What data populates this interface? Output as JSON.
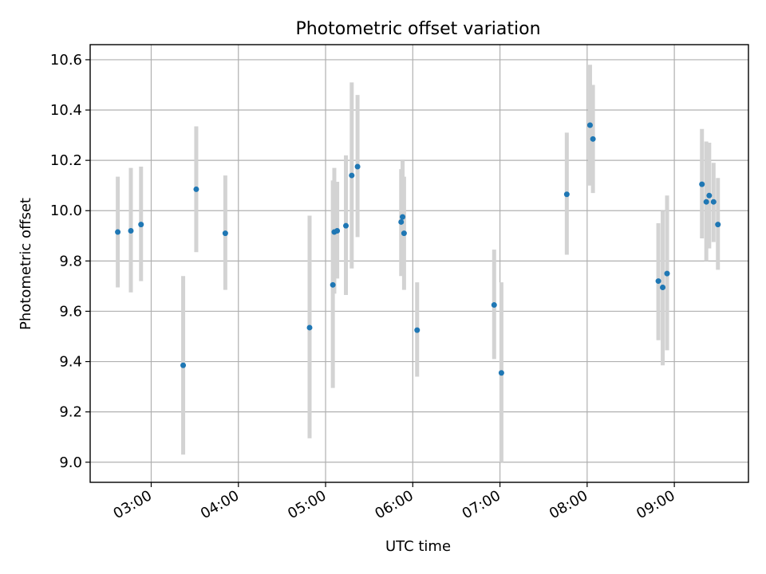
{
  "chart_data": {
    "type": "scatter",
    "title": "Photometric offset variation",
    "xlabel": "UTC time",
    "ylabel": "Photometric offset",
    "x_ticks": [
      "03:00",
      "04:00",
      "05:00",
      "06:00",
      "07:00",
      "08:00",
      "09:00"
    ],
    "y_ticks": [
      "9.0",
      "9.2",
      "9.4",
      "9.6",
      "9.8",
      "10.0",
      "10.2",
      "10.4",
      "10.6"
    ],
    "xlim": [
      "02:18",
      "09:51"
    ],
    "ylim": [
      8.92,
      10.66
    ],
    "grid": true,
    "colors": {
      "point": "#1f77b4",
      "errorbar": "#d3d3d3"
    },
    "points": [
      {
        "x": "02:37",
        "y": 9.915,
        "lo": 9.695,
        "hi": 10.135
      },
      {
        "x": "02:46",
        "y": 9.92,
        "lo": 9.675,
        "hi": 10.17
      },
      {
        "x": "02:53",
        "y": 9.945,
        "lo": 9.72,
        "hi": 10.175
      },
      {
        "x": "03:22",
        "y": 9.385,
        "lo": 9.03,
        "hi": 9.74
      },
      {
        "x": "03:31",
        "y": 10.085,
        "lo": 9.835,
        "hi": 10.335
      },
      {
        "x": "03:51",
        "y": 9.91,
        "lo": 9.685,
        "hi": 10.14
      },
      {
        "x": "04:49",
        "y": 9.535,
        "lo": 9.095,
        "hi": 9.98
      },
      {
        "x": "05:05",
        "y": 9.705,
        "lo": 9.295,
        "hi": 10.12
      },
      {
        "x": "05:06",
        "y": 9.915,
        "lo": 9.67,
        "hi": 10.17
      },
      {
        "x": "05:08",
        "y": 9.92,
        "lo": 9.73,
        "hi": 10.115
      },
      {
        "x": "05:14",
        "y": 9.94,
        "lo": 9.665,
        "hi": 10.22
      },
      {
        "x": "05:18",
        "y": 10.14,
        "lo": 9.77,
        "hi": 10.51
      },
      {
        "x": "05:22",
        "y": 10.175,
        "lo": 9.895,
        "hi": 10.46
      },
      {
        "x": "05:52",
        "y": 9.955,
        "lo": 9.74,
        "hi": 10.165
      },
      {
        "x": "05:53",
        "y": 9.975,
        "lo": 9.755,
        "hi": 10.2
      },
      {
        "x": "05:54",
        "y": 9.91,
        "lo": 9.685,
        "hi": 10.135
      },
      {
        "x": "06:03",
        "y": 9.525,
        "lo": 9.34,
        "hi": 9.715
      },
      {
        "x": "06:56",
        "y": 9.625,
        "lo": 9.41,
        "hi": 9.845
      },
      {
        "x": "07:01",
        "y": 9.355,
        "lo": 9.0,
        "hi": 9.715
      },
      {
        "x": "07:46",
        "y": 10.065,
        "lo": 9.825,
        "hi": 10.31
      },
      {
        "x": "08:02",
        "y": 10.34,
        "lo": 10.1,
        "hi": 10.58
      },
      {
        "x": "08:04",
        "y": 10.285,
        "lo": 10.07,
        "hi": 10.5
      },
      {
        "x": "08:49",
        "y": 9.72,
        "lo": 9.485,
        "hi": 9.95
      },
      {
        "x": "08:52",
        "y": 9.695,
        "lo": 9.385,
        "hi": 10.0
      },
      {
        "x": "08:55",
        "y": 9.75,
        "lo": 9.445,
        "hi": 10.06
      },
      {
        "x": "09:19",
        "y": 10.105,
        "lo": 9.89,
        "hi": 10.325
      },
      {
        "x": "09:22",
        "y": 10.035,
        "lo": 9.8,
        "hi": 10.275
      },
      {
        "x": "09:24",
        "y": 10.06,
        "lo": 9.85,
        "hi": 10.27
      },
      {
        "x": "09:27",
        "y": 10.035,
        "lo": 9.875,
        "hi": 10.19
      },
      {
        "x": "09:30",
        "y": 9.945,
        "lo": 9.765,
        "hi": 10.13
      }
    ]
  }
}
